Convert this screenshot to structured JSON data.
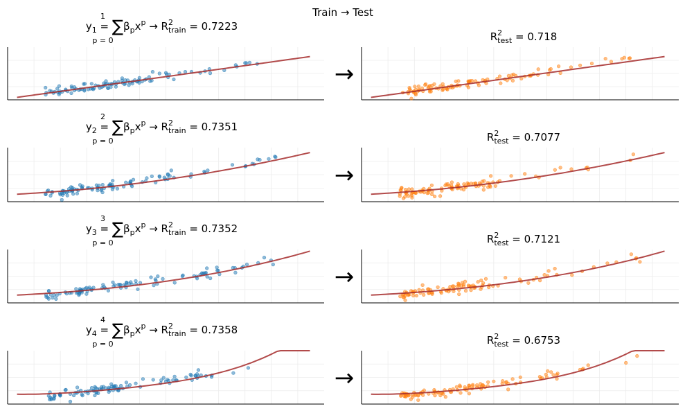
{
  "figure": {
    "suptitle": "Train → Test",
    "arrow": "→",
    "colors": {
      "train_points": "#1f77b4",
      "test_points": "#ff7f0e",
      "fit_line": "#a52a2a",
      "grid": "#ececec",
      "axis": "#000000"
    }
  },
  "chart_data": [
    {
      "type": "scatter",
      "role": "train",
      "degree": 1,
      "title": "y1 = Σ βp x^p → R²train = 0.7223",
      "r2": 0.7223,
      "xlim": [
        -2.5,
        4.2
      ],
      "ylim": [
        -0.8,
        1.6
      ],
      "grid": true,
      "fit_coefficients": [
        0.0,
        0.3
      ],
      "points_seed": 11
    },
    {
      "type": "scatter",
      "role": "test",
      "degree": 1,
      "title": "R²test = 0.718",
      "r2": 0.718,
      "xlim": [
        -2.5,
        4.2
      ],
      "ylim": [
        -0.8,
        1.6
      ],
      "grid": true,
      "fit_coefficients": [
        0.0,
        0.3
      ],
      "points_seed": 21
    },
    {
      "type": "scatter",
      "role": "train",
      "degree": 2,
      "title": "y2 = Σ βp x^p → R²train = 0.7351",
      "r2": 0.7351,
      "xlim": [
        -2.5,
        4.2
      ],
      "ylim": [
        -0.8,
        1.6
      ],
      "grid": true,
      "fit_coefficients": [
        -0.05,
        0.25,
        0.03
      ],
      "points_seed": 12
    },
    {
      "type": "scatter",
      "role": "test",
      "degree": 2,
      "title": "R²test = 0.7077",
      "r2": 0.7077,
      "xlim": [
        -2.5,
        4.2
      ],
      "ylim": [
        -0.8,
        1.6
      ],
      "grid": true,
      "fit_coefficients": [
        -0.05,
        0.25,
        0.03
      ],
      "points_seed": 22
    },
    {
      "type": "scatter",
      "role": "train",
      "degree": 3,
      "title": "y3 = Σ βp x^p → R²train = 0.7352",
      "r2": 0.7352,
      "xlim": [
        -2.5,
        4.2
      ],
      "ylim": [
        -0.8,
        1.6
      ],
      "grid": true,
      "fit_coefficients": [
        -0.06,
        0.24,
        0.035,
        0.002
      ],
      "points_seed": 13
    },
    {
      "type": "scatter",
      "role": "test",
      "degree": 3,
      "title": "R²test = 0.7121",
      "r2": 0.7121,
      "xlim": [
        -2.5,
        4.2
      ],
      "ylim": [
        -0.8,
        1.6
      ],
      "grid": true,
      "fit_coefficients": [
        -0.06,
        0.24,
        0.035,
        0.002
      ],
      "points_seed": 23
    },
    {
      "type": "scatter",
      "role": "train",
      "degree": 4,
      "title": "y4 = Σ βp x^p → R²train = 0.7358",
      "r2": 0.7358,
      "xlim": [
        -2.5,
        4.2
      ],
      "ylim": [
        -0.8,
        1.6
      ],
      "grid": true,
      "fit_coefficients": [
        -0.08,
        0.22,
        0.04,
        0.006,
        0.0032
      ],
      "points_seed": 14
    },
    {
      "type": "scatter",
      "role": "test",
      "degree": 4,
      "title": "R²test = 0.6753",
      "r2": 0.6753,
      "xlim": [
        -2.5,
        4.2
      ],
      "ylim": [
        -0.8,
        1.6
      ],
      "grid": true,
      "fit_coefficients": [
        -0.08,
        0.22,
        0.04,
        0.006,
        0.0032
      ],
      "points_seed": 24
    }
  ]
}
